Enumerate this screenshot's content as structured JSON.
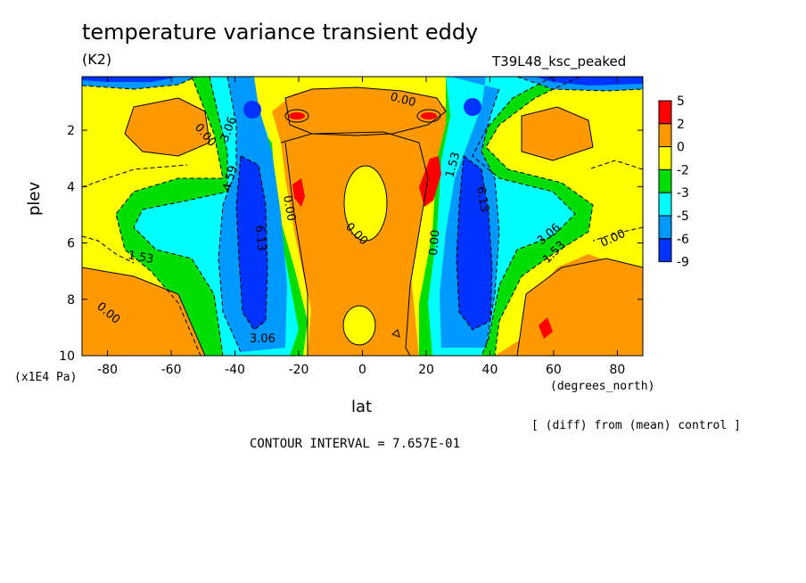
{
  "chart_data": {
    "type": "heatmap",
    "title": "temperature variance transient eddy",
    "units": "(K2)",
    "run_label": "T39L48_ksc_peaked",
    "xlabel": "lat",
    "xunits": "(degrees_north)",
    "ylabel": "plev",
    "yunits": "(x1E4 Pa)",
    "x_ticks": [
      -80,
      -60,
      -40,
      -20,
      0,
      20,
      40,
      60,
      80
    ],
    "y_ticks": [
      2,
      4,
      6,
      8,
      10
    ],
    "xlim": [
      -88,
      88
    ],
    "ylim": [
      10,
      0.1
    ],
    "y_reversed": true,
    "grid": false,
    "legend": "right",
    "colorbar": {
      "labels": [
        "5",
        "2",
        "0",
        "-2",
        "-3",
        "-5",
        "-6",
        "-9"
      ],
      "colors": [
        "#ff0000",
        "#ff9900",
        "#ffff00",
        "#00dd00",
        "#00ffff",
        "#0099ff",
        "#0033ff"
      ]
    },
    "contour_labels": [
      "0.00",
      "1.53",
      "3.06",
      "4.59",
      "6.13"
    ],
    "note": "[ (diff) from (mean) control ]",
    "contour_interval_text": "CONTOUR INTERVAL = 7.657E-01"
  }
}
